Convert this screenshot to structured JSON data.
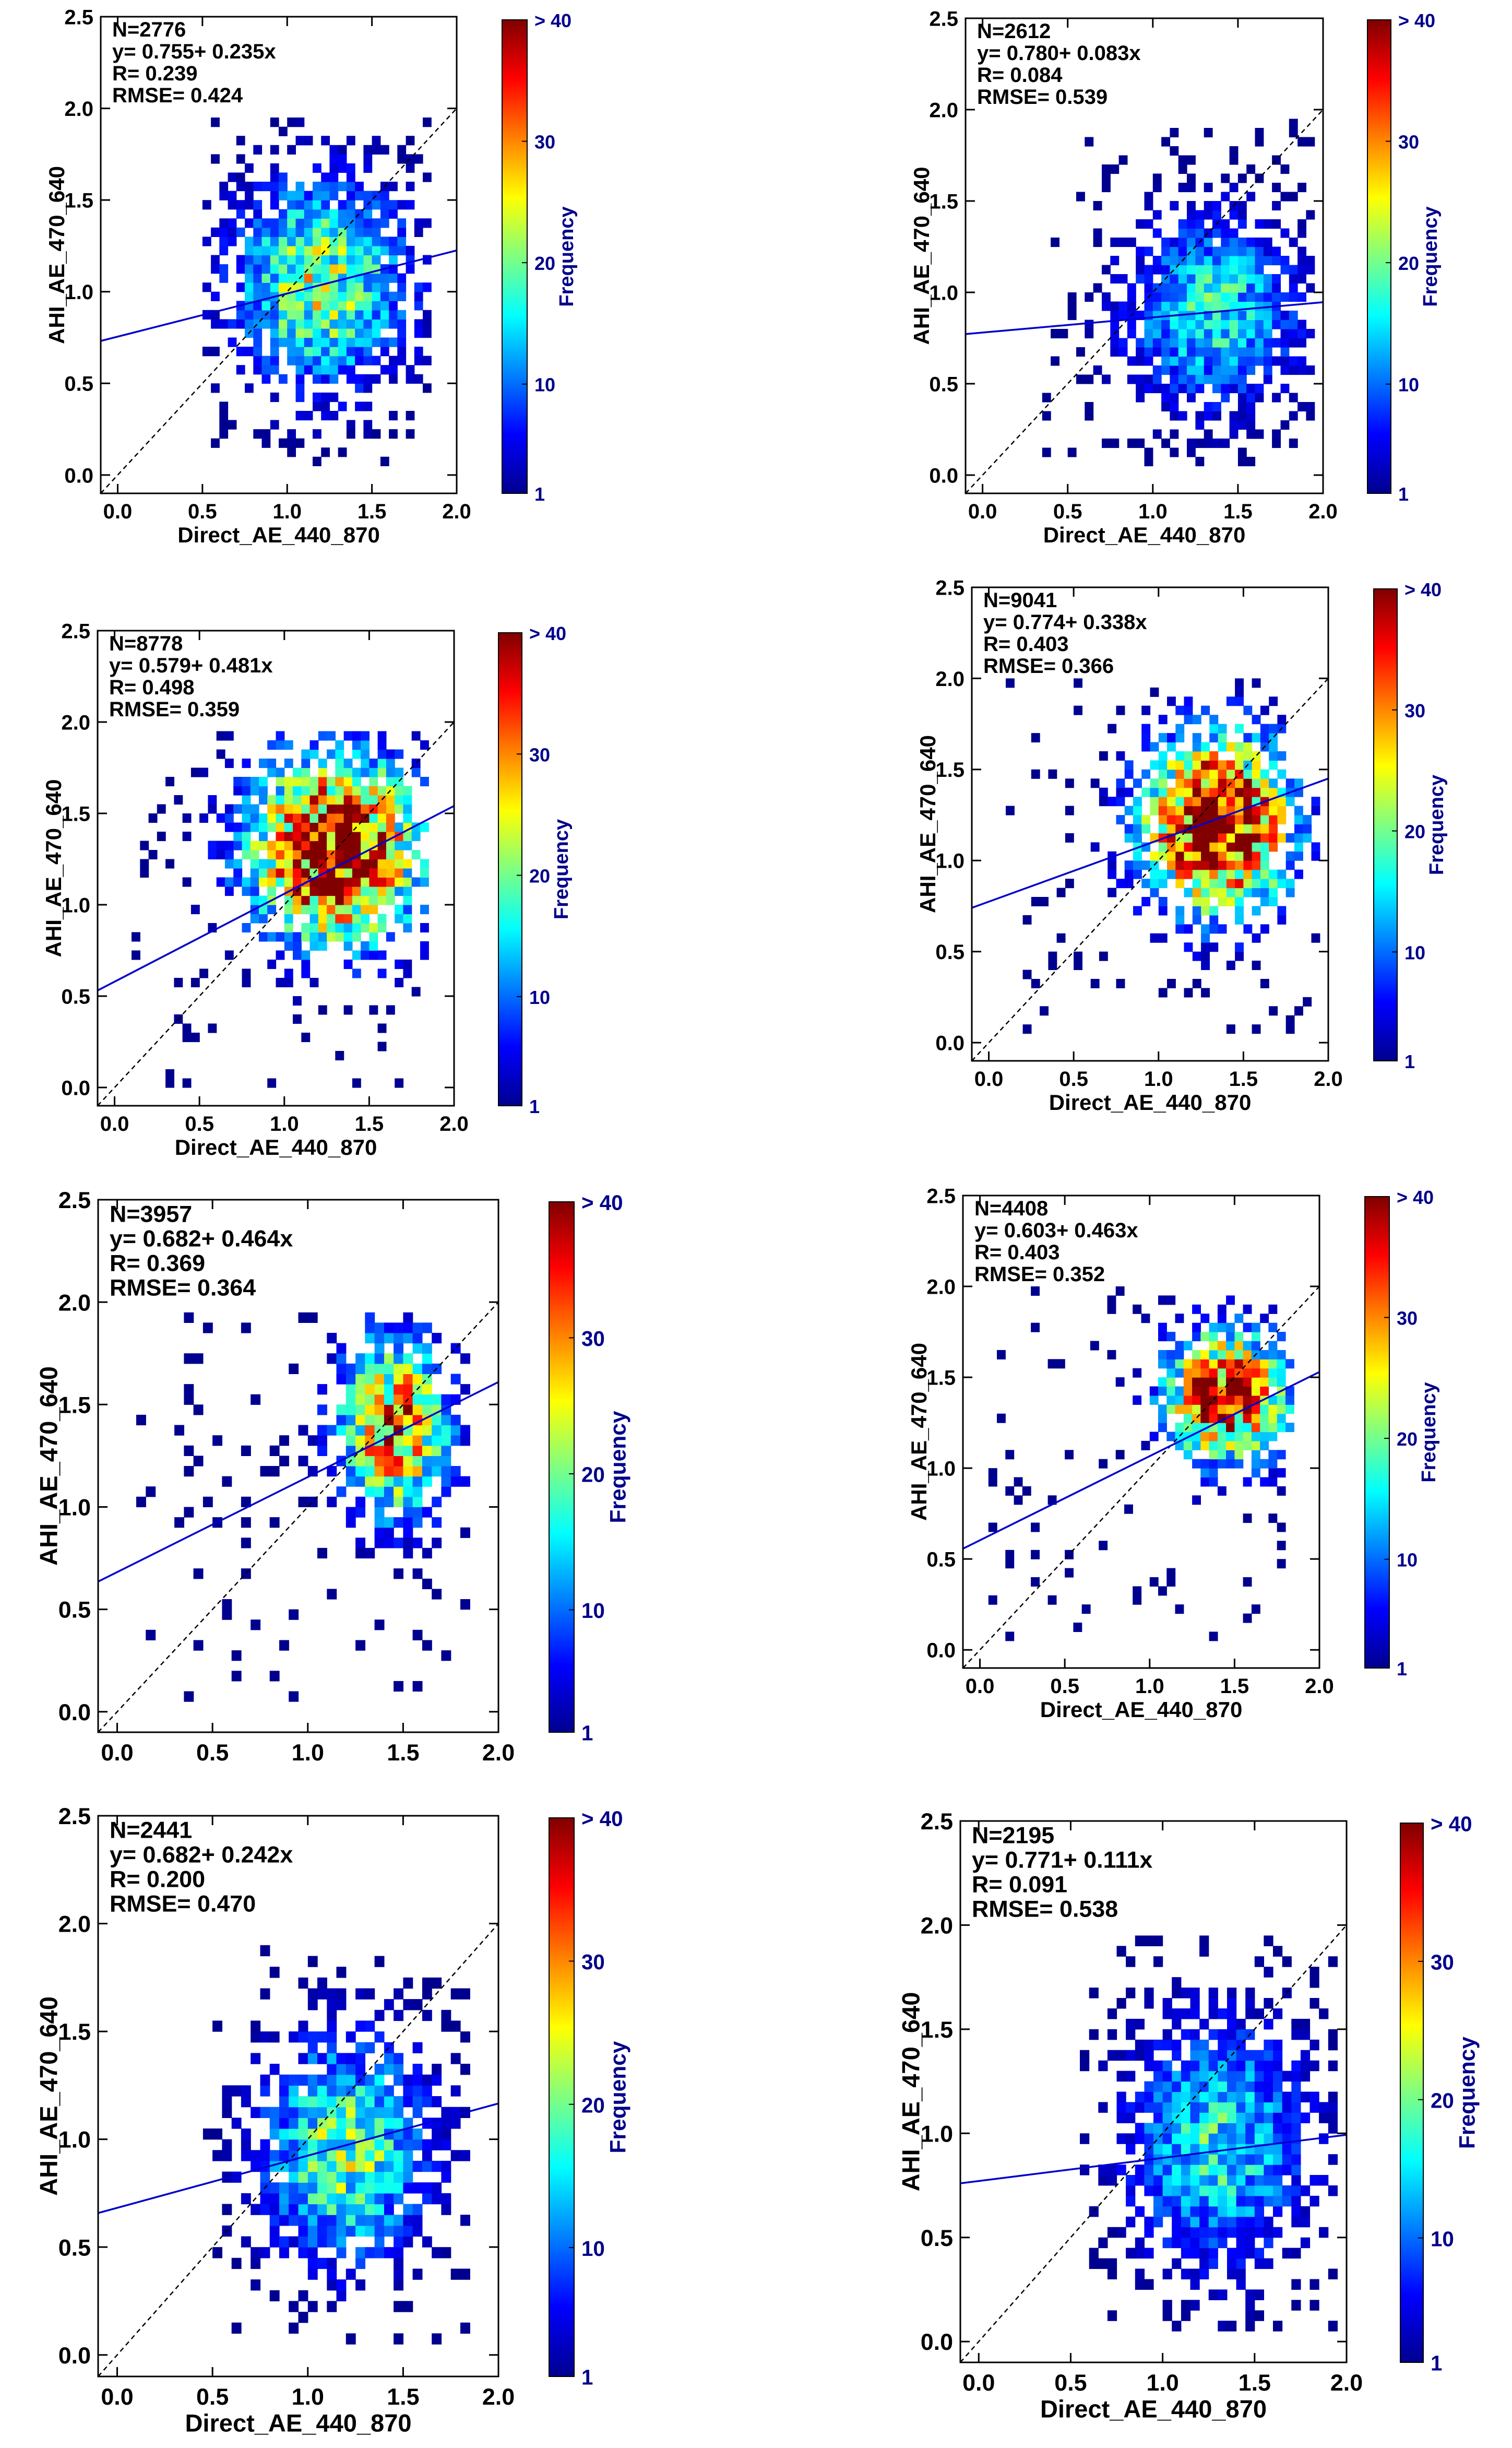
{
  "colorbar_label": "Frequency",
  "colorbar_ticks": [
    "1",
    "10",
    "20",
    "30",
    "> 40"
  ],
  "colors": {
    "axes": "#000000",
    "regression_line": "#0000cc",
    "one_to_one_line": "#000000",
    "colorbar_text": "#00008b",
    "colormap": [
      "#00008f",
      "#0000ff",
      "#0080ff",
      "#00ffff",
      "#80ff80",
      "#ffff00",
      "#ff8000",
      "#ff0000",
      "#800000"
    ]
  },
  "chart_data": [
    {
      "type": "heatmap",
      "xlabel": "Direct_AE_440_870",
      "ylabel": "AHI_AE_470_640",
      "xticks": [
        "0.0",
        "0.5",
        "1.0",
        "1.5",
        "2.0"
      ],
      "yticks": [
        "0.0",
        "0.5",
        "1.0",
        "1.5",
        "2.0",
        "2.5"
      ],
      "xlim": [
        -0.1,
        2.0
      ],
      "ylim": [
        -0.1,
        2.5
      ],
      "stats": {
        "n": "N=2776",
        "equation": "y= 0.755+ 0.235x",
        "r": "R= 0.239",
        "rmse": "RMSE= 0.424"
      },
      "regression": {
        "intercept": 0.755,
        "slope": 0.235
      },
      "density": {
        "cx": 1.2,
        "cy": 1.05,
        "sx": 0.35,
        "sy": 0.38,
        "peak": 22,
        "xmin": 0.5,
        "xmax": 1.85,
        "ymin": 0.05,
        "ymax": 1.95
      }
    },
    {
      "type": "heatmap",
      "xlabel": "Direct_AE_440_870",
      "ylabel": "AHI_AE_470_640",
      "xticks": [
        "0.0",
        "0.5",
        "1.0",
        "1.5",
        "2.0"
      ],
      "yticks": [
        "0.0",
        "0.5",
        "1.0",
        "1.5",
        "2.0",
        "2.5"
      ],
      "xlim": [
        -0.1,
        2.0
      ],
      "ylim": [
        -0.1,
        2.5
      ],
      "stats": {
        "n": "N=2612",
        "equation": "y= 0.780+ 0.083x",
        "r": "R= 0.084",
        "rmse": "RMSE= 0.539"
      },
      "regression": {
        "intercept": 0.78,
        "slope": 0.083
      },
      "density": {
        "cx": 1.35,
        "cy": 0.9,
        "sx": 0.35,
        "sy": 0.35,
        "peak": 16,
        "xmin": 0.35,
        "xmax": 1.95,
        "ymin": 0.05,
        "ymax": 1.95
      }
    },
    {
      "type": "heatmap",
      "xlabel": "Direct_AE_440_870",
      "ylabel": "AHI_AE_470_640",
      "xticks": [
        "0.0",
        "0.5",
        "1.0",
        "1.5",
        "2.0"
      ],
      "yticks": [
        "0.0",
        "0.5",
        "1.0",
        "1.5",
        "2.0",
        "2.5"
      ],
      "xlim": [
        -0.1,
        2.0
      ],
      "ylim": [
        -0.1,
        2.5
      ],
      "stats": {
        "n": "N=8778",
        "equation": "y= 0.579+ 0.481x",
        "r": "R= 0.498",
        "rmse": "RMSE= 0.359"
      },
      "regression": {
        "intercept": 0.579,
        "slope": 0.481
      },
      "density": {
        "cx": 1.3,
        "cy": 1.3,
        "sx": 0.35,
        "sy": 0.35,
        "peak": 42,
        "xmin": 0.1,
        "xmax": 1.85,
        "ymin": 0.0,
        "ymax": 1.95
      }
    },
    {
      "type": "heatmap",
      "xlabel": "Direct_AE_440_870",
      "ylabel": "AHI_AE_470_640",
      "xticks": [
        "0.0",
        "0.5",
        "1.0",
        "1.5",
        "2.0"
      ],
      "yticks": [
        "0.0",
        "0.5",
        "1.0",
        "1.5",
        "2.0",
        "2.5"
      ],
      "xlim": [
        -0.1,
        2.0
      ],
      "ylim": [
        -0.1,
        2.5
      ],
      "stats": {
        "n": "N=9041",
        "equation": "y= 0.774+ 0.338x",
        "r": "R= 0.403",
        "rmse": "RMSE= 0.366"
      },
      "regression": {
        "intercept": 0.774,
        "slope": 0.338
      },
      "density": {
        "cx": 1.35,
        "cy": 1.2,
        "sx": 0.3,
        "sy": 0.33,
        "peak": 45,
        "xmin": 0.1,
        "xmax": 1.95,
        "ymin": 0.05,
        "ymax": 2.0
      }
    },
    {
      "type": "heatmap",
      "xlabel": "",
      "ylabel": "AHI_AE_470_640",
      "xticks": [
        "0.0",
        "0.5",
        "1.0",
        "1.5",
        "2.0"
      ],
      "yticks": [
        "0.0",
        "0.5",
        "1.0",
        "1.5",
        "2.0",
        "2.5"
      ],
      "xlim": [
        -0.1,
        2.0
      ],
      "ylim": [
        -0.1,
        2.5
      ],
      "stats": {
        "n": "N=3957",
        "equation": "y= 0.682+ 0.464x",
        "r": "R= 0.369",
        "rmse": "RMSE= 0.364"
      },
      "regression": {
        "intercept": 0.682,
        "slope": 0.464
      },
      "density": {
        "cx": 1.45,
        "cy": 1.4,
        "sx": 0.2,
        "sy": 0.3,
        "peak": 32,
        "xmin": 0.1,
        "xmax": 1.85,
        "ymin": 0.05,
        "ymax": 1.95
      }
    },
    {
      "type": "heatmap",
      "xlabel": "Direct_AE_440_870",
      "ylabel": "AHI_AE_470_640",
      "xticks": [
        "0.0",
        "0.5",
        "1.0",
        "1.5",
        "2.0"
      ],
      "yticks": [
        "0.0",
        "0.5",
        "1.0",
        "1.5",
        "2.0",
        "2.5"
      ],
      "xlim": [
        -0.1,
        2.0
      ],
      "ylim": [
        -0.1,
        2.5
      ],
      "stats": {
        "n": "N=4408",
        "equation": "y= 0.603+ 0.463x",
        "r": "R= 0.403",
        "rmse": "RMSE= 0.352"
      },
      "regression": {
        "intercept": 0.603,
        "slope": 0.463
      },
      "density": {
        "cx": 1.45,
        "cy": 1.4,
        "sx": 0.25,
        "sy": 0.25,
        "peak": 38,
        "xmin": 0.05,
        "xmax": 1.85,
        "ymin": 0.05,
        "ymax": 2.0
      }
    },
    {
      "type": "heatmap",
      "xlabel": "Direct_AE_440_870",
      "ylabel": "AHI_AE_470_640",
      "xticks": [
        "0.0",
        "0.5",
        "1.0",
        "1.5",
        "2.0"
      ],
      "yticks": [
        "0.0",
        "0.5",
        "1.0",
        "1.5",
        "2.0",
        "2.5"
      ],
      "xlim": [
        -0.1,
        2.0
      ],
      "ylim": [
        -0.1,
        2.5
      ],
      "stats": {
        "n": "N=2441",
        "equation": "y= 0.682+ 0.242x",
        "r": "R= 0.200",
        "rmse": "RMSE= 0.470"
      },
      "regression": {
        "intercept": 0.682,
        "slope": 0.242
      },
      "density": {
        "cx": 1.2,
        "cy": 0.95,
        "sx": 0.3,
        "sy": 0.35,
        "peak": 20,
        "xmin": 0.45,
        "xmax": 1.85,
        "ymin": 0.05,
        "ymax": 1.9
      }
    },
    {
      "type": "heatmap",
      "xlabel": "Direct_AE_440_870",
      "ylabel": "AHI_AE_470_640",
      "xticks": [
        "0.0",
        "0.5",
        "1.0",
        "1.5",
        "2.0"
      ],
      "yticks": [
        "0.0",
        "0.5",
        "1.0",
        "1.5",
        "2.0",
        "2.5"
      ],
      "xlim": [
        -0.1,
        2.0
      ],
      "ylim": [
        -0.1,
        2.5
      ],
      "stats": {
        "n": "N=2195",
        "equation": "y= 0.771+ 0.111x",
        "r": "R= 0.091",
        "rmse": "RMSE= 0.538"
      },
      "regression": {
        "intercept": 0.771,
        "slope": 0.111
      },
      "density": {
        "cx": 1.3,
        "cy": 0.95,
        "sx": 0.33,
        "sy": 0.4,
        "peak": 16,
        "xmin": 0.55,
        "xmax": 1.95,
        "ymin": 0.05,
        "ymax": 1.95
      }
    }
  ]
}
